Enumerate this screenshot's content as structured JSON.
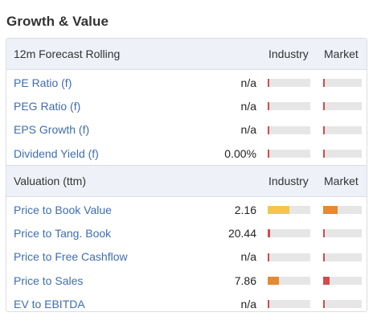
{
  "title": "Growth & Value",
  "colors": {
    "link": "#3f6db0",
    "header_bg": "#eef1f8",
    "bar_track": "#e6e6e6",
    "bar_yellow": "#f3c64b",
    "bar_orange": "#e58a33",
    "bar_red": "#d44b4b"
  },
  "forecast": {
    "header": "12m Forecast Rolling",
    "industry_label": "Industry",
    "market_label": "Market",
    "rows": [
      {
        "label": "PE Ratio (f)",
        "value": "n/a",
        "industry_fill": 0.04,
        "industry_color": "#d44b4b",
        "market_fill": 0.04,
        "market_color": "#d44b4b"
      },
      {
        "label": "PEG Ratio (f)",
        "value": "n/a",
        "industry_fill": 0.04,
        "industry_color": "#d44b4b",
        "market_fill": 0.04,
        "market_color": "#d44b4b"
      },
      {
        "label": "EPS Growth (f)",
        "value": "n/a",
        "industry_fill": 0.04,
        "industry_color": "#d44b4b",
        "market_fill": 0.04,
        "market_color": "#d44b4b"
      },
      {
        "label": "Dividend Yield (f)",
        "value": "0.00%",
        "industry_fill": 0.04,
        "industry_color": "#d44b4b",
        "market_fill": 0.04,
        "market_color": "#d44b4b"
      }
    ]
  },
  "valuation": {
    "header": "Valuation (ttm)",
    "industry_label": "Industry",
    "market_label": "Market",
    "rows": [
      {
        "label": "Price to Book Value",
        "value": "2.16",
        "industry_fill": 0.5,
        "industry_color": "#f3c64b",
        "market_fill": 0.38,
        "market_color": "#e58a33"
      },
      {
        "label": "Price to Tang. Book",
        "value": "20.44",
        "industry_fill": 0.06,
        "industry_color": "#d44b4b",
        "market_fill": 0.04,
        "market_color": "#d44b4b"
      },
      {
        "label": "Price to Free Cashflow",
        "value": "n/a",
        "industry_fill": 0.04,
        "industry_color": "#d44b4b",
        "market_fill": 0.04,
        "market_color": "#d44b4b"
      },
      {
        "label": "Price to Sales",
        "value": "7.86",
        "industry_fill": 0.27,
        "industry_color": "#e58a33",
        "market_fill": 0.17,
        "market_color": "#d44b4b"
      },
      {
        "label": "EV to EBITDA",
        "value": "n/a",
        "industry_fill": 0.04,
        "industry_color": "#d44b4b",
        "market_fill": 0.04,
        "market_color": "#d44b4b"
      }
    ]
  }
}
